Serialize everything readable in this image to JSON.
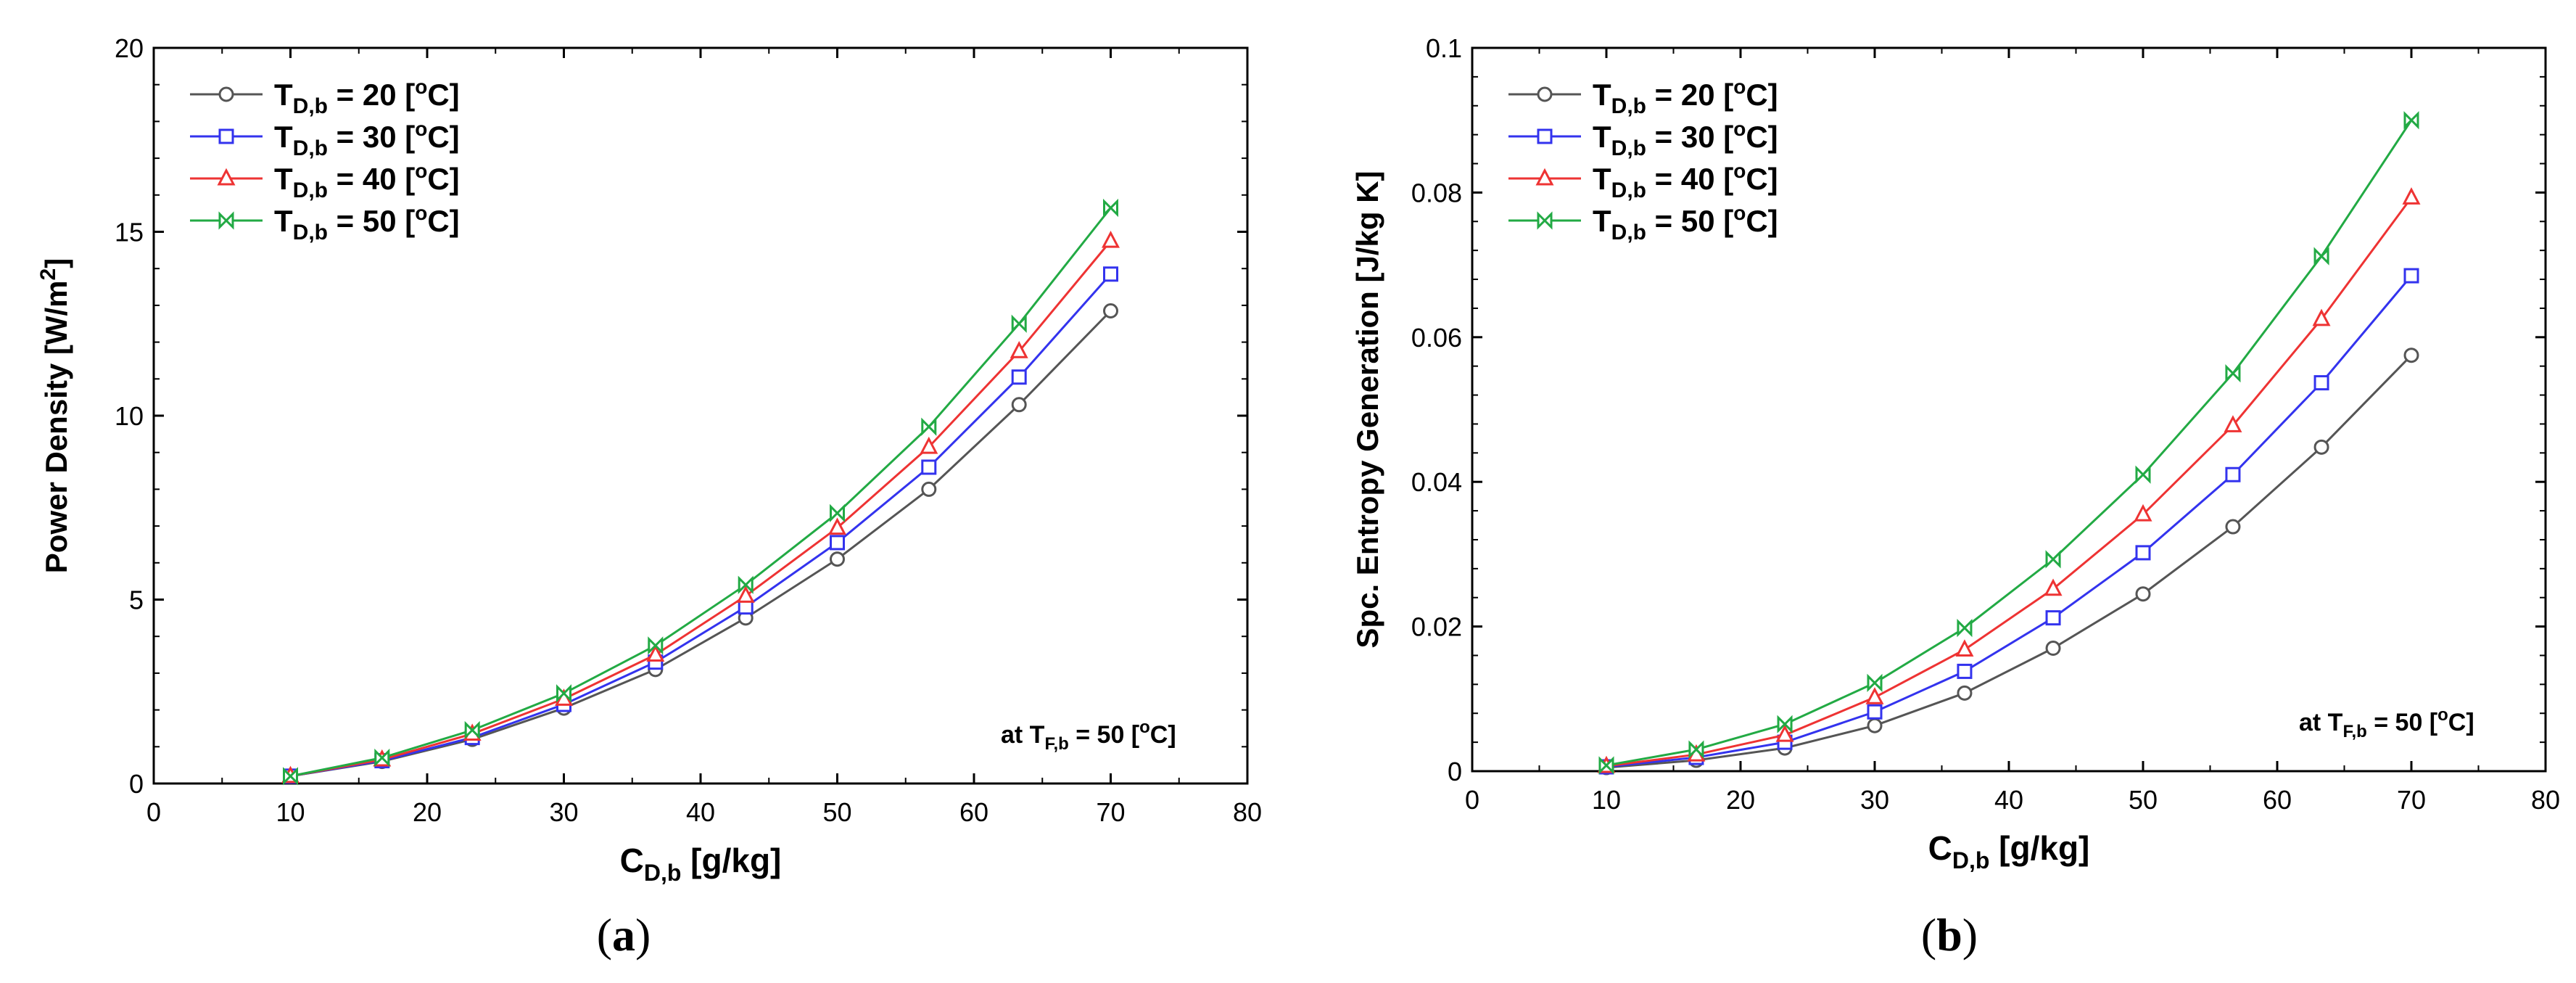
{
  "chart_data": [
    {
      "type": "line",
      "panel_label": "a",
      "xlabel_main": "C",
      "xlabel_sub": "D,b",
      "xlabel_unit": "[g/kg]",
      "ylabel": "Power Density [W/m",
      "ylabel_sup": "2",
      "ylabel_close": "]",
      "xlim": [
        0,
        80
      ],
      "ylim": [
        0,
        20
      ],
      "xticks": [
        0,
        10,
        20,
        30,
        40,
        50,
        60,
        70,
        80
      ],
      "yticks": [
        0,
        5,
        10,
        15,
        20
      ],
      "annotation": {
        "prefix": "at T",
        "sub": "F,b",
        "value": " = 50  [",
        "sup": "o",
        "unit": "C]"
      },
      "x": [
        10,
        16.7,
        23.3,
        30,
        36.7,
        43.3,
        50,
        56.7,
        63.3,
        70
      ],
      "series": [
        {
          "name": "T_D,b = 20 [oC]",
          "label_main": "T",
          "label_sub": "D,b",
          "label_value": " = 20  [",
          "label_sup": "o",
          "label_unit": "C]",
          "color": "#555555",
          "marker": "circle",
          "values": [
            0.2,
            0.6,
            1.2,
            2.05,
            3.1,
            4.5,
            6.1,
            8.0,
            10.3,
            12.85
          ]
        },
        {
          "name": "T_D,b = 30 [oC]",
          "label_main": "T",
          "label_sub": "D,b",
          "label_value": " = 30  [",
          "label_sup": "o",
          "label_unit": "C]",
          "color": "#3333ee",
          "marker": "square",
          "values": [
            0.2,
            0.62,
            1.25,
            2.15,
            3.3,
            4.8,
            6.55,
            8.6,
            11.05,
            13.85
          ]
        },
        {
          "name": "T_D,b = 40 [oC]",
          "label_main": "T",
          "label_sub": "D,b",
          "label_value": " = 40  [",
          "label_sup": "o",
          "label_unit": "C]",
          "color": "#ee3333",
          "marker": "triangle",
          "values": [
            0.2,
            0.65,
            1.35,
            2.3,
            3.5,
            5.1,
            6.95,
            9.15,
            11.75,
            14.75
          ]
        },
        {
          "name": "T_D,b = 50 [oC]",
          "label_main": "T",
          "label_sub": "D,b",
          "label_value": " = 50  [",
          "label_sup": "o",
          "label_unit": "C]",
          "color": "#22aa44",
          "marker": "bowtie",
          "values": [
            0.2,
            0.7,
            1.45,
            2.45,
            3.75,
            5.4,
            7.35,
            9.7,
            12.5,
            15.65
          ]
        }
      ]
    },
    {
      "type": "line",
      "panel_label": "b",
      "xlabel_main": "C",
      "xlabel_sub": "D,b",
      "xlabel_unit": "[g/kg]",
      "ylabel": "Spc. Entropy Generation [J/kg K]",
      "xlim": [
        0,
        80
      ],
      "ylim": [
        0,
        0.1
      ],
      "xticks": [
        0,
        10,
        20,
        30,
        40,
        50,
        60,
        70,
        80
      ],
      "yticks": [
        0,
        0.02,
        0.04,
        0.06,
        0.08,
        0.1
      ],
      "ytick_labels": [
        "0",
        "0.02",
        "0.04",
        "0.06",
        "0.08",
        "0.1"
      ],
      "annotation": {
        "prefix": "at T",
        "sub": "F,b",
        "value": " = 50  [",
        "sup": "o",
        "unit": "C]"
      },
      "x": [
        10,
        16.7,
        23.3,
        30,
        36.7,
        43.3,
        50,
        56.7,
        63.3,
        70
      ],
      "series": [
        {
          "name": "T_D,b = 20 [oC]",
          "label_main": "T",
          "label_sub": "D,b",
          "label_value": " = 20  [",
          "label_sup": "o",
          "label_unit": "C]",
          "color": "#555555",
          "marker": "circle",
          "values": [
            0.0005,
            0.0015,
            0.0032,
            0.0063,
            0.0108,
            0.017,
            0.0245,
            0.0338,
            0.0448,
            0.0575
          ]
        },
        {
          "name": "T_D,b = 30 [oC]",
          "label_main": "T",
          "label_sub": "D,b",
          "label_value": " = 30  [",
          "label_sup": "o",
          "label_unit": "C]",
          "color": "#3333ee",
          "marker": "square",
          "values": [
            0.0006,
            0.0019,
            0.004,
            0.0082,
            0.0138,
            0.0212,
            0.0302,
            0.041,
            0.0537,
            0.0685
          ]
        },
        {
          "name": "T_D,b = 40 [oC]",
          "label_main": "T",
          "label_sub": "D,b",
          "label_value": " = 40  [",
          "label_sup": "o",
          "label_unit": "C]",
          "color": "#ee3333",
          "marker": "triangle",
          "values": [
            0.0007,
            0.0023,
            0.005,
            0.0102,
            0.0168,
            0.0252,
            0.0355,
            0.0478,
            0.0625,
            0.0793
          ]
        },
        {
          "name": "T_D,b = 50 [oC]",
          "label_main": "T",
          "label_sub": "D,b",
          "label_value": " = 50  [",
          "label_sup": "o",
          "label_unit": "C]",
          "color": "#22aa44",
          "marker": "bowtie",
          "values": [
            0.0008,
            0.003,
            0.0065,
            0.0122,
            0.0198,
            0.0293,
            0.041,
            0.055,
            0.0712,
            0.09
          ]
        }
      ]
    }
  ]
}
